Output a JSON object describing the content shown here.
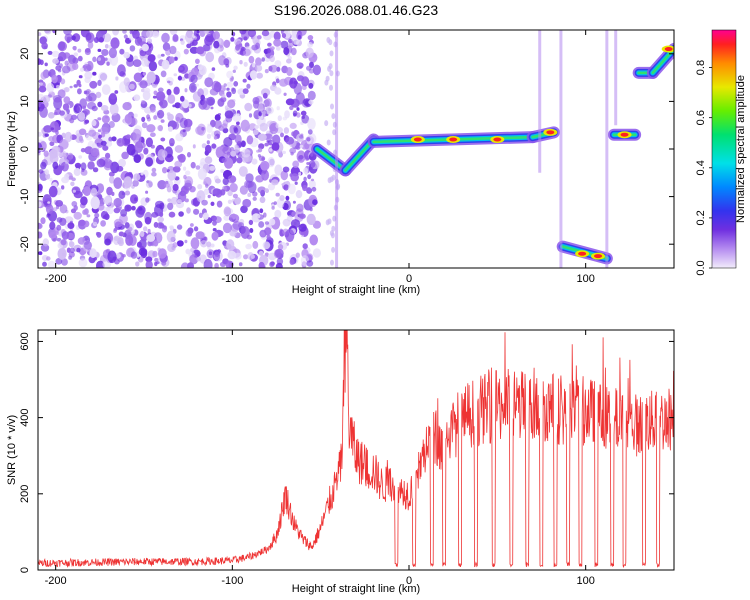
{
  "title": "S196.2026.088.01.46.G23",
  "chart_data": [
    {
      "type": "heatmap",
      "xlabel": "Height of straight line (km)",
      "ylabel": "Frequency (Hz)",
      "xlim": [
        -210,
        150
      ],
      "ylim": [
        -25,
        25
      ],
      "xticks": [
        -200,
        -100,
        0,
        100
      ],
      "yticks": [
        -20,
        -10,
        0,
        10,
        20
      ],
      "colorbar": {
        "label": "Normalized spectral amplitude",
        "range": [
          0,
          0.95
        ],
        "ticks": [
          0.0,
          0.2,
          0.4,
          0.6,
          0.8
        ]
      },
      "noise_region_x": [
        -210,
        -52
      ],
      "ridge": [
        {
          "x": [
            -52,
            -36
          ],
          "y": [
            0,
            -4.5
          ]
        },
        {
          "x": [
            -36,
            -20
          ],
          "y": [
            -4.5,
            2
          ]
        },
        {
          "x": [
            -20,
            70
          ],
          "y": [
            1.5,
            2.5
          ]
        },
        {
          "x": [
            70,
            82
          ],
          "y": [
            2.5,
            3.5
          ]
        },
        {
          "x": [
            87,
            112
          ],
          "y": [
            -20.5,
            -23
          ]
        },
        {
          "x": [
            116,
            128
          ],
          "y": [
            3,
            3
          ]
        },
        {
          "x": [
            130,
            138
          ],
          "y": [
            16,
            16
          ]
        },
        {
          "x": [
            138,
            150
          ],
          "y": [
            16,
            21
          ]
        }
      ],
      "peaks": [
        {
          "x": 5,
          "y": 2
        },
        {
          "x": 25,
          "y": 2
        },
        {
          "x": 50,
          "y": 2
        },
        {
          "x": 80,
          "y": 3.5
        },
        {
          "x": 98,
          "y": -22
        },
        {
          "x": 107,
          "y": -22.5
        },
        {
          "x": 122,
          "y": 3
        },
        {
          "x": 147,
          "y": 21
        }
      ]
    },
    {
      "type": "line",
      "xlabel": "Height of straight line (km)",
      "ylabel": "SNR (10 * v/v)",
      "xlim": [
        -210,
        150
      ],
      "ylim": [
        0,
        630
      ],
      "xticks": [
        -200,
        -100,
        0,
        100
      ],
      "yticks": [
        0,
        200,
        400,
        600
      ],
      "series": [
        {
          "color": "#ee3333",
          "x": [
            -210,
            -180,
            -150,
            -120,
            -100,
            -90,
            -80,
            -75,
            -72,
            -70,
            -65,
            -60,
            -55,
            -50,
            -45,
            -40,
            -38,
            -36,
            -35,
            -34,
            -30,
            -25,
            -20,
            -15,
            -10,
            -5,
            0,
            5,
            10,
            15,
            20,
            25,
            30,
            40,
            50,
            60,
            70,
            80,
            90,
            100,
            110,
            120,
            130,
            140,
            150
          ],
          "y": [
            18,
            20,
            22,
            22,
            25,
            35,
            55,
            90,
            150,
            200,
            120,
            80,
            60,
            110,
            180,
            240,
            300,
            560,
            620,
            380,
            300,
            270,
            260,
            220,
            230,
            210,
            200,
            250,
            330,
            350,
            310,
            370,
            400,
            420,
            430,
            440,
            420,
            430,
            410,
            420,
            400,
            390,
            380,
            390,
            400
          ]
        }
      ],
      "dip_positions": [
        -7,
        3,
        13,
        20,
        29,
        38,
        48,
        58,
        67,
        75,
        83,
        90,
        97,
        106,
        115,
        122,
        133,
        141
      ]
    }
  ]
}
